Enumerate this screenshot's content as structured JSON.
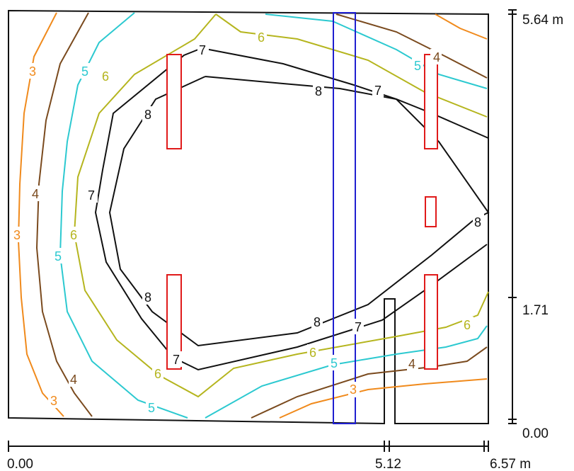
{
  "colors": {
    "c3": "#f08a1c",
    "c4": "#7a4a1e",
    "c5": "#2cc9d0",
    "c6": "#b5b51e",
    "c7": "#111111",
    "c8": "#111111",
    "luminaire": "#e01a1a",
    "window": "#1f1fd0",
    "wall": "#111111"
  },
  "axes": {
    "x_ticks": [
      "0.00",
      "5.12",
      "6.57 m"
    ],
    "y_ticks": [
      "5.64 m",
      "1.71",
      "0.00"
    ]
  },
  "contours": [
    {
      "level": "3",
      "labels": [
        "3",
        "3",
        "3",
        "3"
      ]
    },
    {
      "level": "4",
      "labels": [
        "4",
        "4",
        "4",
        "4"
      ]
    },
    {
      "level": "5",
      "labels": [
        "5",
        "5",
        "5",
        "5",
        "5"
      ]
    },
    {
      "level": "6",
      "labels": [
        "6",
        "6",
        "6",
        "6",
        "6",
        "6"
      ]
    },
    {
      "level": "7",
      "labels": [
        "7",
        "7",
        "7",
        "7",
        "7"
      ]
    },
    {
      "level": "8",
      "labels": [
        "8",
        "8",
        "8",
        "8",
        "8"
      ]
    }
  ]
}
